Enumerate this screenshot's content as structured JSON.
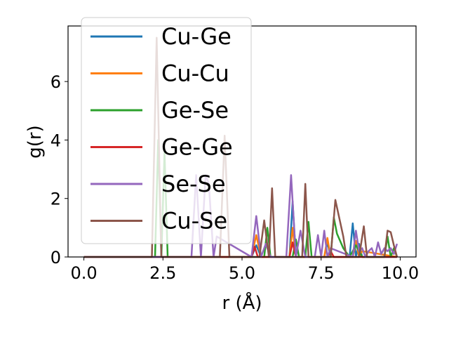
{
  "chart_data": {
    "type": "line",
    "title": "",
    "xlabel": "r (Å)",
    "ylabel": "g(r)",
    "xlim": [
      -0.5,
      10.5
    ],
    "ylim": [
      0,
      7.9
    ],
    "xticks": [
      "0.0",
      "2.5",
      "5.0",
      "7.5",
      "10.0"
    ],
    "xtick_values": [
      0,
      2.5,
      5,
      7.5,
      10
    ],
    "yticks": [
      "0",
      "2",
      "4",
      "6"
    ],
    "ytick_values": [
      0,
      2,
      4,
      6
    ],
    "grid": false,
    "legend_position": "upper-left",
    "series": [
      {
        "name": "Cu-Ge",
        "color": "#1f77b4",
        "x": [
          0,
          2.2,
          2.35,
          2.5,
          5.3,
          5.45,
          5.6,
          6.5,
          6.6,
          6.7,
          7.6,
          7.7,
          7.8,
          8.4,
          8.5,
          8.6,
          8.7,
          8.8,
          9.9
        ],
        "y": [
          0,
          0,
          0,
          0,
          0,
          0.4,
          0,
          0,
          1.9,
          0,
          0,
          0.5,
          0,
          0,
          1.15,
          0,
          0.45,
          0,
          0
        ]
      },
      {
        "name": "Cu-Cu",
        "color": "#ff7f0e",
        "x": [
          0,
          5.3,
          5.45,
          5.6,
          6.5,
          6.6,
          6.7,
          7.6,
          7.7,
          7.8,
          8.5,
          8.6,
          8.7,
          8.8,
          9.9
        ],
        "y": [
          0,
          0,
          0.75,
          0,
          0,
          1.0,
          0,
          0,
          0.65,
          0,
          0,
          0.55,
          0,
          0.2,
          0
        ]
      },
      {
        "name": "Ge-Se",
        "color": "#2ca02c",
        "x": [
          0,
          2.25,
          2.35,
          2.45,
          2.55,
          2.65,
          3.4,
          5.7,
          5.8,
          5.9,
          6.6,
          6.7,
          6.8,
          7.0,
          7.1,
          7.2,
          7.8,
          7.9,
          8.0,
          8.2,
          8.4,
          8.6,
          8.8,
          9.5,
          9.6,
          9.7,
          9.8,
          9.9
        ],
        "y": [
          0,
          0,
          4.0,
          0,
          3.6,
          0,
          0,
          0,
          1.0,
          0,
          0,
          0.6,
          0,
          0,
          1.2,
          0,
          0,
          1.35,
          0.8,
          0.3,
          0,
          0.4,
          0,
          0,
          0.7,
          0,
          0.3,
          0
        ]
      },
      {
        "name": "Ge-Ge",
        "color": "#d62728",
        "x": [
          0,
          5.3,
          5.4,
          5.5,
          6.5,
          6.6,
          6.7,
          7.7,
          7.8,
          7.9,
          9.9
        ],
        "y": [
          0,
          0,
          0.35,
          0,
          0,
          0.5,
          0,
          0,
          0.2,
          0,
          0
        ]
      },
      {
        "name": "Se-Se",
        "color": "#9467bd",
        "x": [
          0,
          3.4,
          3.55,
          3.7,
          3.85,
          3.95,
          4.1,
          4.2,
          5.3,
          5.45,
          5.6,
          5.75,
          5.9,
          6.4,
          6.55,
          6.7,
          6.85,
          7.0,
          7.3,
          7.4,
          7.5,
          7.6,
          7.7,
          7.8,
          8.5,
          8.6,
          8.7,
          8.8,
          8.9,
          9.0,
          9.1,
          9.2,
          9.3,
          9.4,
          9.5,
          9.6,
          9.7,
          9.8,
          9.9
        ],
        "y": [
          0,
          0,
          2.8,
          0,
          2.8,
          2.5,
          0,
          0.7,
          0,
          1.4,
          0,
          0.45,
          0,
          0,
          2.8,
          0,
          0.9,
          0,
          0,
          0.75,
          0,
          0.9,
          0,
          0.3,
          0,
          0.9,
          0.2,
          0.3,
          0,
          0.2,
          0.3,
          0,
          0.5,
          0.1,
          0.3,
          0.2,
          0.3,
          0.1,
          0.45
        ]
      },
      {
        "name": "Cu-Se",
        "color": "#8c564b",
        "x": [
          0,
          2.15,
          2.3,
          2.45,
          4.3,
          4.45,
          4.6,
          5.55,
          5.7,
          5.85,
          5.95,
          6.05,
          6.9,
          7.0,
          7.1,
          7.8,
          7.95,
          8.1,
          8.2,
          8.3,
          8.7,
          8.85,
          8.95,
          9.5,
          9.6,
          9.7,
          9.8,
          9.9
        ],
        "y": [
          0,
          0,
          7.5,
          0,
          0,
          4.15,
          0,
          0,
          1.25,
          0,
          2.35,
          0,
          0,
          2.5,
          0,
          0,
          1.95,
          1.2,
          0.7,
          0,
          0,
          1.05,
          0,
          0,
          0.9,
          0.85,
          0.4,
          0
        ]
      }
    ]
  }
}
